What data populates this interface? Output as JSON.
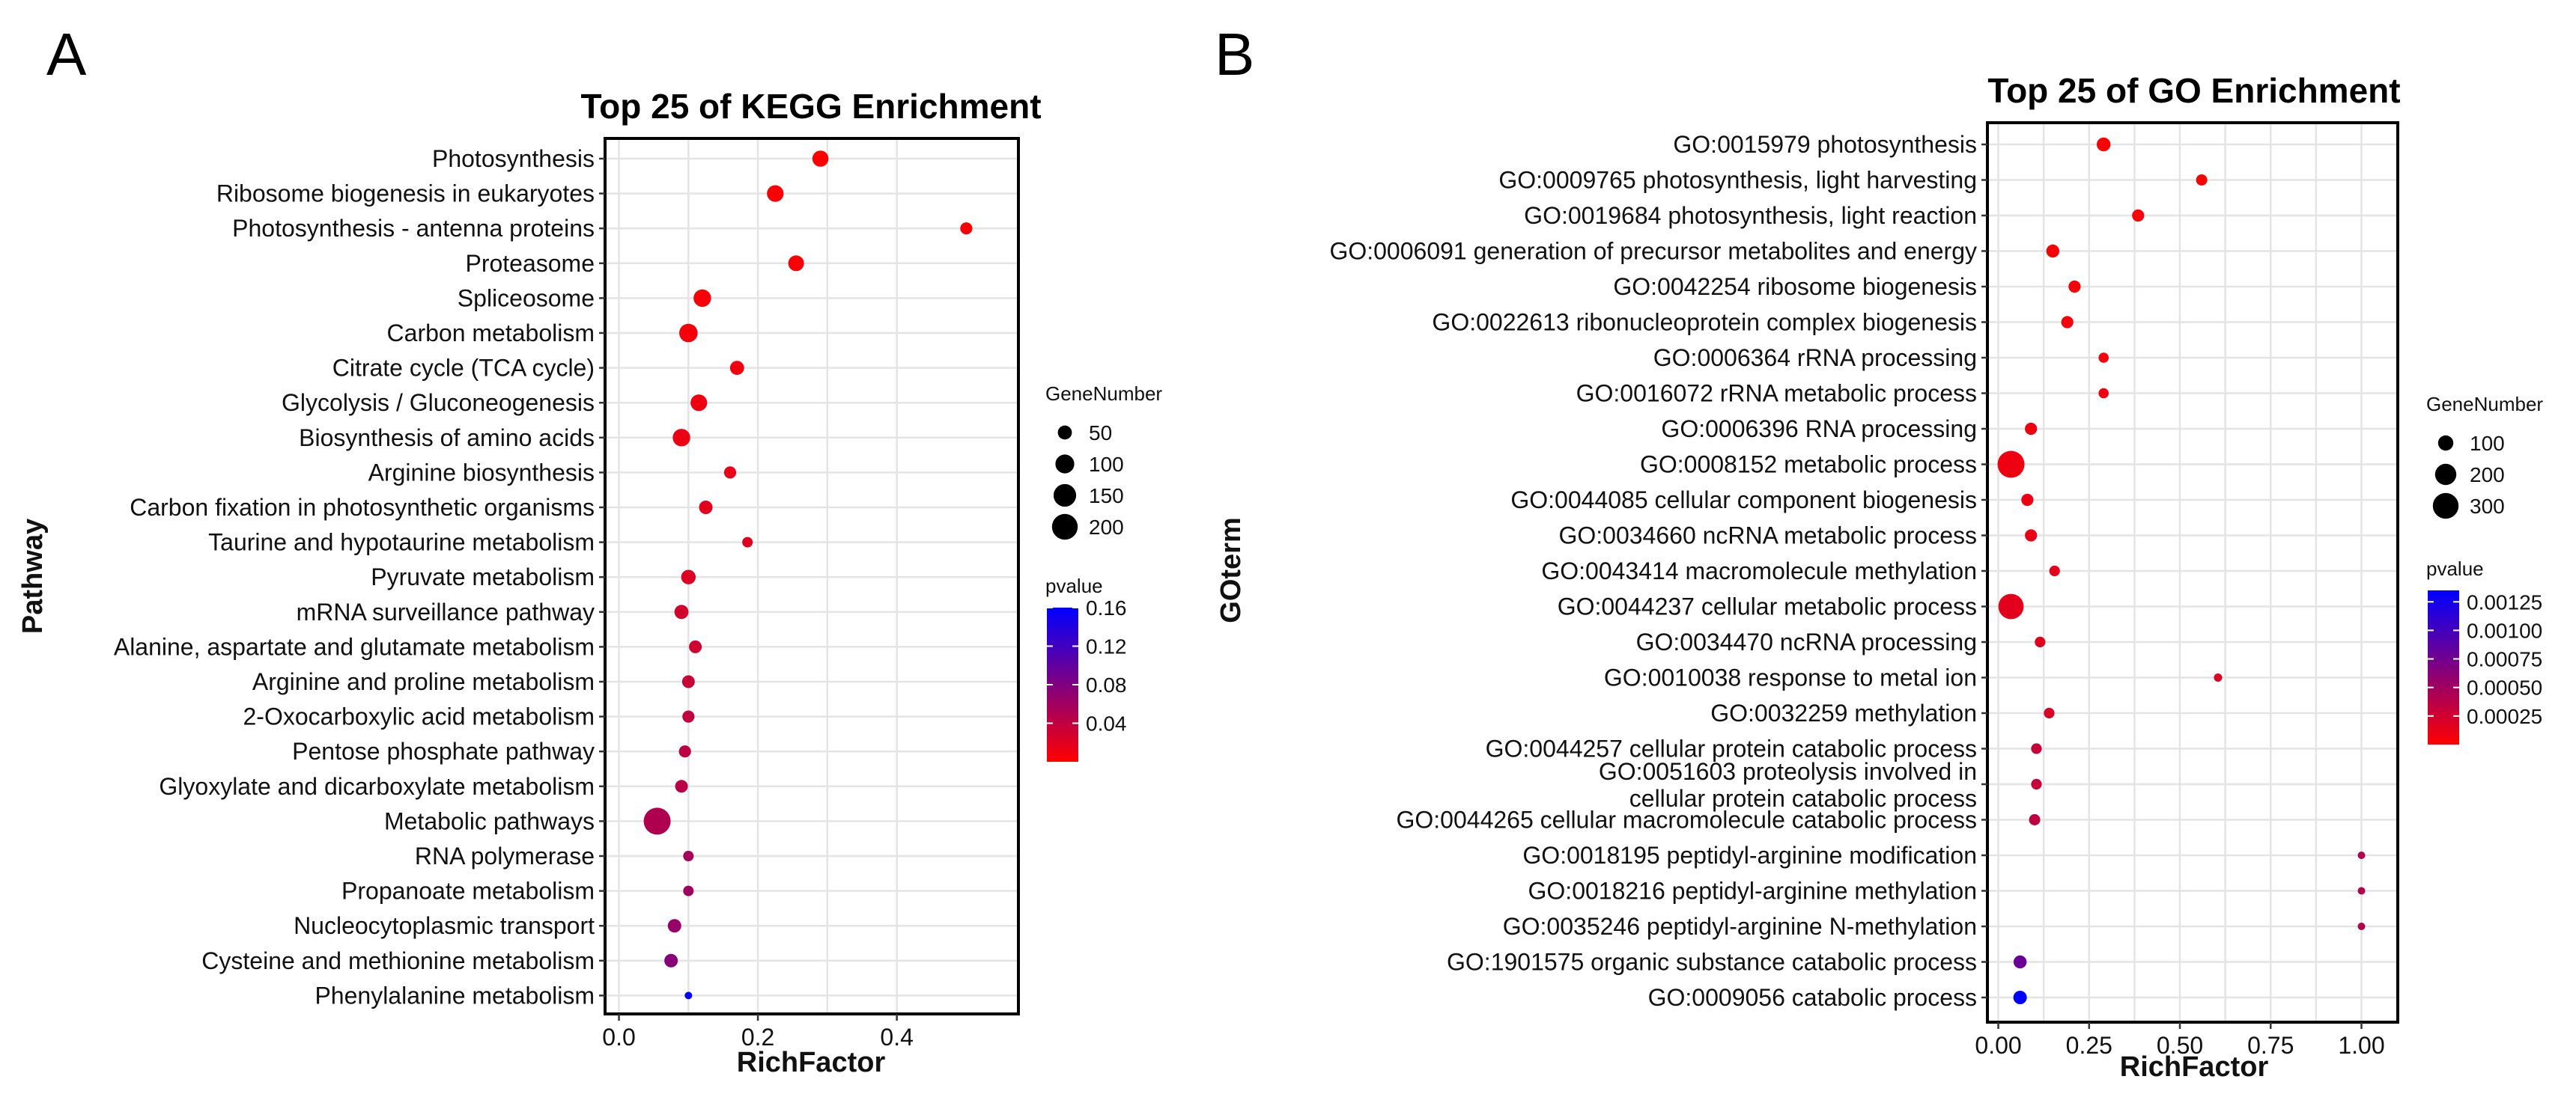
{
  "chart_data": [
    {
      "type": "scatter",
      "panel": "A",
      "title": "Top 25 of KEGG Enrichment",
      "xlabel": "RichFactor",
      "ylabel": "Pathway",
      "xlim": [
        -0.02,
        0.575
      ],
      "xticks": [
        0.0,
        0.2,
        0.4
      ],
      "tick_labels": [
        "0.0",
        "0.2",
        "0.4"
      ],
      "size_legend": {
        "title": "GeneNumber",
        "values": [
          50,
          100,
          150,
          200
        ],
        "labels": [
          "50",
          "100",
          "150",
          "200"
        ]
      },
      "color_legend": {
        "title": "pvalue",
        "min": 0.0,
        "max": 0.16,
        "low_color": "#ff0000",
        "high_color": "#0000ff",
        "ticks": [
          0.04,
          0.08,
          0.12,
          0.16
        ],
        "labels": [
          "0.04",
          "0.08",
          "0.12",
          "0.16"
        ]
      },
      "points": [
        {
          "label": "Photosynthesis",
          "x": 0.29,
          "gene_number": 70,
          "pvalue": 0.001
        },
        {
          "label": "Ribosome biogenesis in eukaryotes",
          "x": 0.225,
          "gene_number": 75,
          "pvalue": 0.002
        },
        {
          "label": "Photosynthesis - antenna proteins",
          "x": 0.5,
          "gene_number": 35,
          "pvalue": 0.003
        },
        {
          "label": "Proteasome",
          "x": 0.255,
          "gene_number": 65,
          "pvalue": 0.004
        },
        {
          "label": "Spliceosome",
          "x": 0.12,
          "gene_number": 85,
          "pvalue": 0.005
        },
        {
          "label": "Carbon metabolism",
          "x": 0.1,
          "gene_number": 95,
          "pvalue": 0.006
        },
        {
          "label": "Citrate cycle (TCA cycle)",
          "x": 0.17,
          "gene_number": 50,
          "pvalue": 0.008
        },
        {
          "label": "Glycolysis / Gluconeogenesis",
          "x": 0.115,
          "gene_number": 75,
          "pvalue": 0.01
        },
        {
          "label": "Biosynthesis of amino acids",
          "x": 0.09,
          "gene_number": 85,
          "pvalue": 0.012
        },
        {
          "label": "Arginine biosynthesis",
          "x": 0.16,
          "gene_number": 35,
          "pvalue": 0.015
        },
        {
          "label": "Carbon fixation in photosynthetic organisms",
          "x": 0.125,
          "gene_number": 45,
          "pvalue": 0.018
        },
        {
          "label": "Taurine and hypotaurine metabolism",
          "x": 0.185,
          "gene_number": 25,
          "pvalue": 0.02
        },
        {
          "label": "Pyruvate metabolism",
          "x": 0.1,
          "gene_number": 55,
          "pvalue": 0.022
        },
        {
          "label": "mRNA surveillance pathway",
          "x": 0.09,
          "gene_number": 50,
          "pvalue": 0.028
        },
        {
          "label": "Alanine, aspartate and glutamate metabolism",
          "x": 0.11,
          "gene_number": 40,
          "pvalue": 0.03
        },
        {
          "label": "Arginine and proline metabolism",
          "x": 0.1,
          "gene_number": 40,
          "pvalue": 0.035
        },
        {
          "label": "2-Oxocarboxylic acid metabolism",
          "x": 0.1,
          "gene_number": 35,
          "pvalue": 0.038
        },
        {
          "label": "Pentose phosphate pathway",
          "x": 0.095,
          "gene_number": 35,
          "pvalue": 0.042
        },
        {
          "label": "Glyoxylate and dicarboxylate metabolism",
          "x": 0.09,
          "gene_number": 40,
          "pvalue": 0.045
        },
        {
          "label": "Metabolic pathways",
          "x": 0.055,
          "gene_number": 220,
          "pvalue": 0.05
        },
        {
          "label": "RNA polymerase",
          "x": 0.1,
          "gene_number": 25,
          "pvalue": 0.055
        },
        {
          "label": "Propanoate metabolism",
          "x": 0.1,
          "gene_number": 25,
          "pvalue": 0.06
        },
        {
          "label": "Nucleocytoplasmic transport",
          "x": 0.08,
          "gene_number": 45,
          "pvalue": 0.065
        },
        {
          "label": "Cysteine and methionine metabolism",
          "x": 0.075,
          "gene_number": 45,
          "pvalue": 0.075
        },
        {
          "label": "Phenylalanine metabolism",
          "x": 0.1,
          "gene_number": 10,
          "pvalue": 0.16
        }
      ]
    },
    {
      "type": "scatter",
      "panel": "B",
      "title": "Top 25 of GO Enrichment",
      "xlabel": "RichFactor",
      "ylabel": "GOterm",
      "xlim": [
        -0.03,
        1.1
      ],
      "xticks": [
        0.0,
        0.25,
        0.5,
        0.75,
        1.0
      ],
      "tick_labels": [
        "0.00",
        "0.25",
        "0.50",
        "0.75",
        "1.00"
      ],
      "size_legend": {
        "title": "GeneNumber",
        "values": [
          100,
          200,
          300
        ],
        "labels": [
          "100",
          "200",
          "300"
        ]
      },
      "color_legend": {
        "title": "pvalue",
        "min": 0.0,
        "max": 0.00135,
        "low_color": "#ff0000",
        "high_color": "#0000ff",
        "ticks": [
          0.00025,
          0.0005,
          0.00075,
          0.001,
          0.00125
        ],
        "labels": [
          "0.00025",
          "0.00050",
          "0.00075",
          "0.00100",
          "0.00125"
        ]
      },
      "points": [
        {
          "label": "GO:0015979 photosynthesis",
          "x": 0.29,
          "gene_number": 80,
          "pvalue": 1e-05
        },
        {
          "label": "GO:0009765 photosynthesis, light harvesting",
          "x": 0.56,
          "gene_number": 50,
          "pvalue": 1e-05
        },
        {
          "label": "GO:0019684 photosynthesis, light reaction",
          "x": 0.385,
          "gene_number": 60,
          "pvalue": 2e-05
        },
        {
          "label": "GO:0006091 generation of precursor metabolites and energy",
          "x": 0.15,
          "gene_number": 70,
          "pvalue": 3e-05
        },
        {
          "label": "GO:0042254 ribosome biogenesis",
          "x": 0.21,
          "gene_number": 60,
          "pvalue": 4e-05
        },
        {
          "label": "GO:0022613 ribonucleoprotein complex biogenesis",
          "x": 0.19,
          "gene_number": 60,
          "pvalue": 5e-05
        },
        {
          "label": "GO:0006364 rRNA processing",
          "x": 0.29,
          "gene_number": 40,
          "pvalue": 6e-05
        },
        {
          "label": "GO:0016072 rRNA metabolic process",
          "x": 0.29,
          "gene_number": 40,
          "pvalue": 7e-05
        },
        {
          "label": "GO:0006396 RNA processing",
          "x": 0.09,
          "gene_number": 60,
          "pvalue": 8e-05
        },
        {
          "label": "GO:0008152 metabolic process",
          "x": 0.035,
          "gene_number": 330,
          "pvalue": 9e-05
        },
        {
          "label": "GO:0044085 cellular component biogenesis",
          "x": 0.08,
          "gene_number": 60,
          "pvalue": 0.0001
        },
        {
          "label": "GO:0034660 ncRNA metabolic process",
          "x": 0.09,
          "gene_number": 60,
          "pvalue": 0.00012
        },
        {
          "label": "GO:0043414 macromolecule methylation",
          "x": 0.155,
          "gene_number": 45,
          "pvalue": 0.00014
        },
        {
          "label": "GO:0044237 cellular metabolic process",
          "x": 0.035,
          "gene_number": 290,
          "pvalue": 0.00015
        },
        {
          "label": "GO:0034470 ncRNA processing",
          "x": 0.115,
          "gene_number": 45,
          "pvalue": 0.00016
        },
        {
          "label": "GO:0010038 response to metal ion",
          "x": 0.605,
          "gene_number": 25,
          "pvalue": 0.00018
        },
        {
          "label": "GO:0032259 methylation",
          "x": 0.14,
          "gene_number": 45,
          "pvalue": 0.0002
        },
        {
          "label": "GO:0044257 cellular protein catabolic process",
          "x": 0.105,
          "gene_number": 45,
          "pvalue": 0.0003
        },
        {
          "label": "GO:0051603 proteolysis involved in cellular protein catabolic process",
          "label_lines": [
            "GO:0051603 proteolysis involved in",
            "cellular protein catabolic process"
          ],
          "x": 0.105,
          "gene_number": 45,
          "pvalue": 0.0003
        },
        {
          "label": "GO:0044265 cellular macromolecule catabolic process",
          "x": 0.1,
          "gene_number": 50,
          "pvalue": 0.00035
        },
        {
          "label": "GO:0018195 peptidyl-arginine modification",
          "x": 1.0,
          "gene_number": 20,
          "pvalue": 0.0004
        },
        {
          "label": "GO:0018216 peptidyl-arginine methylation",
          "x": 1.0,
          "gene_number": 20,
          "pvalue": 0.0004
        },
        {
          "label": "GO:0035246 peptidyl-arginine N-methylation",
          "x": 1.0,
          "gene_number": 20,
          "pvalue": 0.0004
        },
        {
          "label": "GO:1901575 organic substance catabolic process",
          "x": 0.06,
          "gene_number": 70,
          "pvalue": 0.0008
        },
        {
          "label": "GO:0009056 catabolic process",
          "x": 0.06,
          "gene_number": 75,
          "pvalue": 0.00135
        }
      ]
    }
  ]
}
